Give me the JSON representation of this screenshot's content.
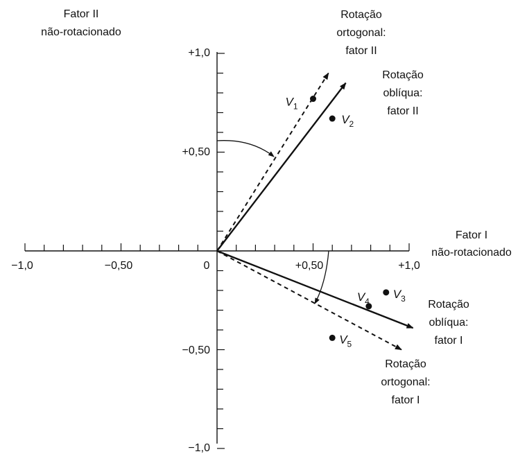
{
  "figure": {
    "colors": {
      "ink": "#111111",
      "background": "#ffffff"
    },
    "axes": {
      "x_label": [
        "Fator I",
        "não-rotacionado"
      ],
      "y_label": [
        "Fator II",
        "não-rotacionado"
      ],
      "origin_label": "0",
      "x_ticks": [
        "−1,0",
        "−0,50",
        "+0,50",
        "+1,0"
      ],
      "y_ticks": [
        "+1,0",
        "+0,50",
        "−0,50",
        "−1,0"
      ],
      "range": [
        -1.0,
        1.0
      ]
    },
    "factors": {
      "orthogonal_II": {
        "label": [
          "Rotação",
          "ortogonal:",
          "fator II"
        ],
        "style": "dashed",
        "end": [
          0.58,
          0.9
        ]
      },
      "oblique_II": {
        "label": [
          "Rotação",
          "oblíqua:",
          "fator II"
        ],
        "style": "solid",
        "end": [
          0.67,
          0.85
        ]
      },
      "oblique_I": {
        "label": [
          "Rotação",
          "oblíqua:",
          "fator I"
        ],
        "style": "solid",
        "end": [
          1.02,
          -0.39
        ]
      },
      "orthogonal_I": {
        "label": [
          "Rotação",
          "ortogonal:",
          "fator I"
        ],
        "style": "dashed",
        "end": [
          0.96,
          -0.5
        ]
      }
    },
    "points": [
      {
        "letter": "V",
        "index": "1",
        "x": 0.5,
        "y": 0.77
      },
      {
        "letter": "V",
        "index": "2",
        "x": 0.6,
        "y": 0.67
      },
      {
        "letter": "V",
        "index": "3",
        "x": 0.88,
        "y": -0.21
      },
      {
        "letter": "V",
        "index": "4",
        "x": 0.79,
        "y": -0.28
      },
      {
        "letter": "V",
        "index": "5",
        "x": 0.6,
        "y": -0.44
      }
    ]
  }
}
